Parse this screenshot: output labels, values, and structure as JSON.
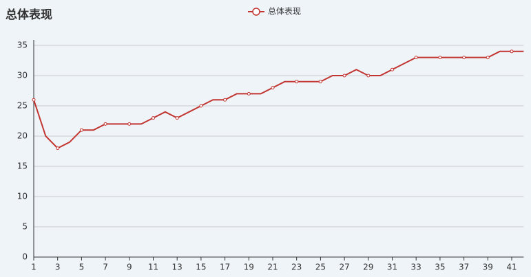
{
  "chart_data": {
    "type": "line",
    "title": "总体表现",
    "categories": [
      "1",
      null,
      "3",
      null,
      "5",
      null,
      "7",
      null,
      "9",
      null,
      "11",
      null,
      "13",
      null,
      "15",
      null,
      "17",
      null,
      "19",
      null,
      "21",
      null,
      "23",
      null,
      "25",
      null,
      "27",
      null,
      "29",
      null,
      "31",
      null,
      "33",
      null,
      "35",
      null,
      "37",
      null,
      "39",
      null,
      "41",
      null
    ],
    "series": [
      {
        "name": "总体表现",
        "color": "#c23531",
        "values": [
          26,
          20,
          18,
          19,
          21,
          21,
          22,
          22,
          22,
          22,
          23,
          24,
          23,
          24,
          25,
          26,
          26,
          27,
          27,
          27,
          28,
          29,
          29,
          29,
          29,
          30,
          30,
          31,
          30,
          30,
          31,
          32,
          33,
          33,
          33,
          33,
          33,
          33,
          33,
          34,
          34,
          34
        ]
      }
    ],
    "ylim": [
      0,
      35
    ],
    "yticks": [
      0,
      5,
      10,
      15,
      20,
      25,
      30,
      35
    ],
    "grid": true,
    "legend": "top"
  }
}
